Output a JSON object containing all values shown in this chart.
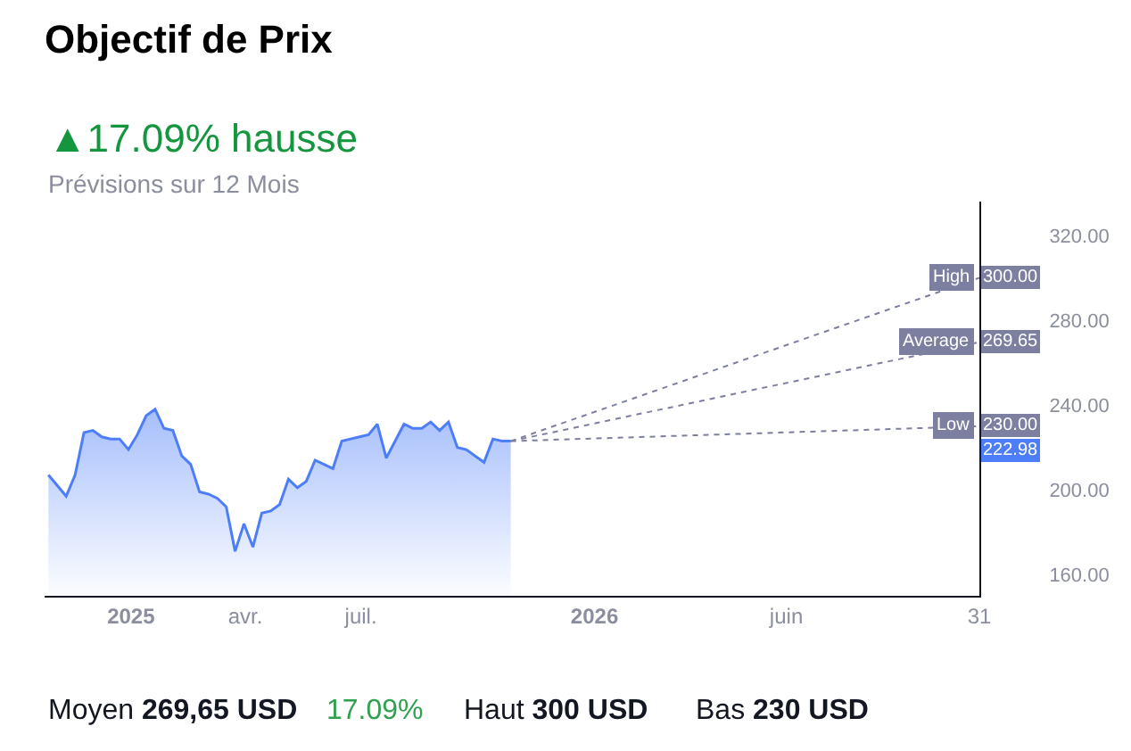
{
  "chart_data": {
    "type": "area",
    "title": "Objectif de Prix",
    "subtitle": "▲17.09% hausse",
    "legend": "right",
    "annotations": [
      "Prévisions sur 12 Mois",
      "Moyen 269,65 USD",
      "17.09%",
      "Haut 300 USD",
      "Bas 230 USD",
      "222.98"
    ],
    "xlim": [
      "2024-10-25",
      "2026-10-31"
    ],
    "xticks": [
      {
        "value": "2025-01-01",
        "label": "2025"
      },
      {
        "value": "2025-04-01",
        "label": "avr."
      },
      {
        "value": "2025-07-01",
        "label": "juil."
      },
      {
        "value": "2026-01-01",
        "label": "2026"
      },
      {
        "value": "2026-06-01",
        "label": "juin"
      },
      {
        "value": "2026-10-31",
        "label": "31"
      }
    ],
    "ylim": [
      150,
      336
    ],
    "yticks": [
      {
        "value": 160,
        "label": "160.00"
      },
      {
        "value": 200,
        "label": "200.00"
      },
      {
        "value": 240,
        "label": "240.00"
      },
      {
        "value": 280,
        "label": "280.00"
      },
      {
        "value": 320,
        "label": "320.00"
      }
    ],
    "series": [
      {
        "color": "#4d7ef7",
        "x": [
          "2024-10-28",
          "2024-11-11",
          "2024-11-18",
          "2024-11-25",
          "2024-12-02",
          "2024-12-09",
          "2024-12-16",
          "2024-12-23",
          "2024-12-30",
          "2025-01-06",
          "2025-01-13",
          "2025-01-20",
          "2025-01-27",
          "2025-02-03",
          "2025-02-10",
          "2025-02-17",
          "2025-02-24",
          "2025-03-03",
          "2025-03-10",
          "2025-03-17",
          "2025-03-24",
          "2025-03-31",
          "2025-04-07",
          "2025-04-14",
          "2025-04-21",
          "2025-04-28",
          "2025-05-05",
          "2025-05-12",
          "2025-05-19",
          "2025-05-26",
          "2025-06-02",
          "2025-06-09",
          "2025-06-16",
          "2025-06-23",
          "2025-06-30",
          "2025-07-07",
          "2025-07-14",
          "2025-07-21",
          "2025-07-28",
          "2025-08-04",
          "2025-08-11",
          "2025-08-18",
          "2025-08-25",
          "2025-09-01",
          "2025-09-08",
          "2025-09-15",
          "2025-09-22",
          "2025-09-29",
          "2025-10-06",
          "2025-10-13",
          "2025-10-20",
          "2025-10-27"
        ],
        "values": [
          207,
          197,
          207,
          227,
          228,
          225,
          224,
          224,
          219,
          226,
          235,
          238,
          229,
          228,
          216,
          212,
          199,
          198,
          196,
          192,
          171,
          184,
          173,
          189,
          190,
          193,
          205,
          201,
          204,
          214,
          212,
          210,
          223,
          224,
          225,
          226,
          231,
          215,
          223,
          231,
          229,
          229,
          232,
          228,
          232,
          220,
          219,
          216,
          213,
          224,
          223,
          222.98
        ]
      },
      {
        "name": "High",
        "type": "line",
        "line_style": "dotted",
        "color": "#7c7f9f",
        "x": [
          "2025-10-27",
          "2026-10-31"
        ],
        "values": [
          222.98,
          300
        ],
        "value_labels": [
          null,
          "300.00"
        ]
      },
      {
        "name": "Average",
        "type": "line",
        "line_style": "dotted",
        "color": "#7c7f9f",
        "x": [
          "2025-10-27",
          "2026-10-31"
        ],
        "values": [
          222.98,
          269.65
        ],
        "value_labels": [
          null,
          "269.65"
        ]
      },
      {
        "name": "Low",
        "type": "line",
        "line_style": "dotted",
        "color": "#7c7f9f",
        "x": [
          "2025-10-27",
          "2026-10-31"
        ],
        "values": [
          222.98,
          230
        ],
        "value_labels": [
          null,
          "230.00"
        ]
      }
    ]
  }
}
